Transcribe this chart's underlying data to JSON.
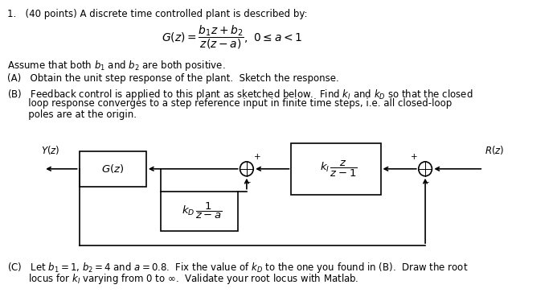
{
  "background_color": "#ffffff",
  "fig_width": 6.93,
  "fig_height": 3.69,
  "dpi": 100,
  "text_color": "#000000",
  "line1": "1.   (40 points) A discrete time controlled plant is described by:",
  "partA": "(A)   Obtain the unit step response of the plant.  Sketch the response.",
  "partB1": "(B)   Feedback control is applied to this plant as sketched below.  Find $k_I$ and $k_D$ so that the closed",
  "partB2": "       loop response converges to a step reference input in finite time steps, i.e. all closed-loop",
  "partB3": "       poles are at the origin.",
  "assume": "Assume that both $b_1$ and $b_2$ are both positive.",
  "partC1": "(C)   Let $b_1 = 1$, $b_2 = 4$ and $a = 0.8$.  Fix the value of $k_D$ to the one you found in (B).  Draw the root",
  "partC2": "       locus for $k_I$ varying from 0 to $\\infty$.  Validate your root locus with Matlab.",
  "Yz": "$Y(z)$",
  "Rz": "$R(z)$",
  "Gz": "$G(z)$"
}
